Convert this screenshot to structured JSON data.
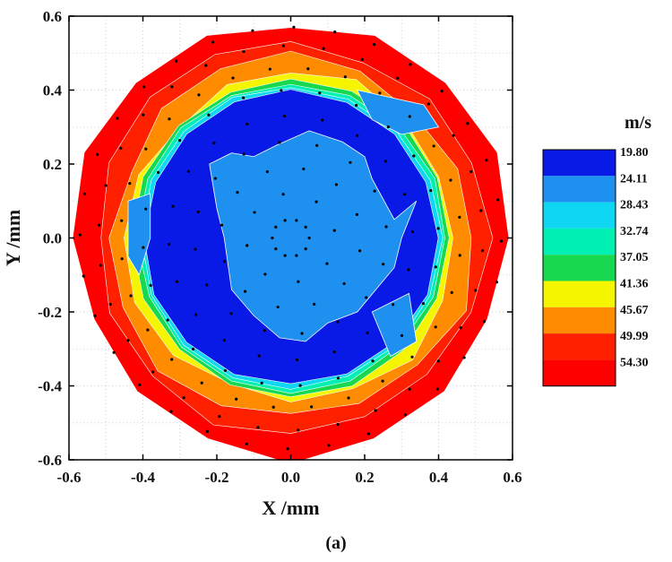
{
  "chart_data": {
    "type": "heatmap",
    "xlabel": "X /mm",
    "ylabel": "Y /mm",
    "xlim": [
      -0.6,
      0.6
    ],
    "ylim": [
      -0.6,
      0.6
    ],
    "x_ticks": [
      "-0.6",
      "-0.4",
      "-0.2",
      "0.0",
      "0.2",
      "0.4",
      "0.6"
    ],
    "y_ticks": [
      "0.6",
      "0.4",
      "0.2",
      "0.0",
      "-0.2",
      "-0.4",
      "-0.6"
    ],
    "grid": true,
    "legend_title": "m/s",
    "legend_position": "right",
    "levels": [
      "19.80",
      "24.11",
      "28.43",
      "32.74",
      "37.05",
      "41.36",
      "45.67",
      "49.99",
      "54.30"
    ],
    "level_colors": [
      "#0a1ae6",
      "#1e90f0",
      "#0fd6f2",
      "#00f0b4",
      "#18d850",
      "#f5f500",
      "#ff8c00",
      "#ff2000",
      "#ff0000"
    ],
    "bands": [
      {
        "level": "54.30",
        "r": 0.59
      },
      {
        "level": "49.99",
        "r": 0.53
      },
      {
        "level": "45.67",
        "r": 0.49
      },
      {
        "level": "41.36",
        "r": 0.445
      },
      {
        "level": "37.05",
        "r": 0.43
      },
      {
        "level": "32.74",
        "r": 0.418
      },
      {
        "level": "28.43",
        "r": 0.408
      },
      {
        "level": "19.80",
        "r": 0.398
      }
    ],
    "inner_region_level": "24.11",
    "inner_region": [
      [
        -0.22,
        0.2
      ],
      [
        -0.2,
        0.08
      ],
      [
        -0.18,
        0.0
      ],
      [
        -0.16,
        -0.14
      ],
      [
        -0.1,
        -0.21
      ],
      [
        -0.03,
        -0.27
      ],
      [
        0.04,
        -0.28
      ],
      [
        0.1,
        -0.23
      ],
      [
        0.18,
        -0.2
      ],
      [
        0.28,
        -0.08
      ],
      [
        0.3,
        0.0
      ],
      [
        0.34,
        0.1
      ],
      [
        0.28,
        0.05
      ],
      [
        0.22,
        0.16
      ],
      [
        0.2,
        0.22
      ],
      [
        0.14,
        0.26
      ],
      [
        0.05,
        0.29
      ],
      [
        -0.04,
        0.25
      ],
      [
        -0.1,
        0.22
      ],
      [
        -0.16,
        0.23
      ]
    ],
    "inner_patches": [
      [
        [
          -0.44,
          0.1
        ],
        [
          -0.38,
          0.12
        ],
        [
          -0.38,
          0.0
        ],
        [
          -0.41,
          -0.1
        ],
        [
          -0.44,
          -0.05
        ]
      ],
      [
        [
          0.18,
          0.4
        ],
        [
          0.36,
          0.36
        ],
        [
          0.4,
          0.3
        ],
        [
          0.3,
          0.28
        ],
        [
          0.22,
          0.32
        ]
      ],
      [
        [
          0.22,
          -0.2
        ],
        [
          0.32,
          -0.15
        ],
        [
          0.34,
          -0.28
        ],
        [
          0.27,
          -0.32
        ]
      ]
    ],
    "dot_rings": [
      {
        "r": 0.05,
        "n": 10
      },
      {
        "r": 0.12,
        "n": 8
      },
      {
        "r": 0.19,
        "n": 12
      },
      {
        "r": 0.26,
        "n": 16
      },
      {
        "r": 0.33,
        "n": 20
      },
      {
        "r": 0.4,
        "n": 24
      },
      {
        "r": 0.46,
        "n": 28
      },
      {
        "r": 0.52,
        "n": 30
      },
      {
        "r": 0.57,
        "n": 32
      }
    ]
  },
  "caption": "(a)"
}
